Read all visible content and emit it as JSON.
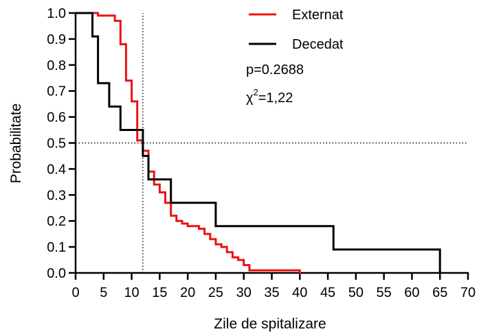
{
  "chart_data": {
    "type": "line",
    "subtype": "kaplan-meier-step",
    "title": "",
    "xlabel": "Zile de spitalizare",
    "ylabel": "Probabilitate",
    "xlim": [
      0,
      70
    ],
    "ylim": [
      0,
      1.0
    ],
    "x_ticks": [
      0,
      5,
      10,
      15,
      20,
      25,
      30,
      35,
      40,
      45,
      50,
      55,
      60,
      65,
      70
    ],
    "x_tick_labels": [
      "0",
      "5",
      "10",
      "15",
      "20",
      "25",
      "30",
      "35",
      "40",
      "45",
      "50",
      "55",
      "60",
      "65",
      "70"
    ],
    "y_ticks": [
      0.0,
      0.1,
      0.2,
      0.3,
      0.4,
      0.5,
      0.6,
      0.7,
      0.8,
      0.9,
      1.0
    ],
    "y_tick_labels": [
      "0.0",
      "0.1",
      "0.2",
      "0.3",
      "0.4",
      "0.5",
      "0.6",
      "0.7",
      "0.8",
      "0.9",
      "1.0"
    ],
    "grid": false,
    "legend_position": "top-right",
    "reference_lines": [
      {
        "orientation": "horizontal",
        "value": 0.5,
        "style": "dotted"
      },
      {
        "orientation": "vertical",
        "value": 12,
        "style": "dotted"
      }
    ],
    "annotations": {
      "p_value": "p=0.2688",
      "chi_prefix": "χ",
      "chi_exp": "2",
      "chi_value": "=1,22"
    },
    "series": [
      {
        "name": "Externat",
        "color": "#ee1111",
        "points": [
          [
            0,
            1.0
          ],
          [
            4,
            1.0
          ],
          [
            4,
            0.99
          ],
          [
            7,
            0.99
          ],
          [
            7,
            0.97
          ],
          [
            8,
            0.97
          ],
          [
            8,
            0.88
          ],
          [
            9,
            0.88
          ],
          [
            9,
            0.74
          ],
          [
            10,
            0.74
          ],
          [
            10,
            0.66
          ],
          [
            11,
            0.66
          ],
          [
            11,
            0.51
          ],
          [
            12,
            0.51
          ],
          [
            12,
            0.47
          ],
          [
            13,
            0.47
          ],
          [
            13,
            0.39
          ],
          [
            14,
            0.39
          ],
          [
            14,
            0.34
          ],
          [
            15,
            0.34
          ],
          [
            15,
            0.31
          ],
          [
            16,
            0.31
          ],
          [
            16,
            0.27
          ],
          [
            17,
            0.27
          ],
          [
            17,
            0.22
          ],
          [
            18,
            0.22
          ],
          [
            18,
            0.2
          ],
          [
            19,
            0.2
          ],
          [
            19,
            0.19
          ],
          [
            20,
            0.19
          ],
          [
            20,
            0.18
          ],
          [
            22,
            0.18
          ],
          [
            22,
            0.17
          ],
          [
            23,
            0.17
          ],
          [
            23,
            0.15
          ],
          [
            24,
            0.15
          ],
          [
            24,
            0.13
          ],
          [
            25,
            0.13
          ],
          [
            25,
            0.11
          ],
          [
            26,
            0.11
          ],
          [
            26,
            0.1
          ],
          [
            27,
            0.1
          ],
          [
            27,
            0.08
          ],
          [
            28,
            0.08
          ],
          [
            28,
            0.06
          ],
          [
            29,
            0.06
          ],
          [
            29,
            0.05
          ],
          [
            30,
            0.05
          ],
          [
            30,
            0.03
          ],
          [
            31,
            0.03
          ],
          [
            31,
            0.01
          ],
          [
            40,
            0.01
          ],
          [
            40,
            0.0
          ]
        ]
      },
      {
        "name": "Decedat",
        "color": "#000000",
        "points": [
          [
            0,
            1.0
          ],
          [
            3,
            1.0
          ],
          [
            3,
            0.91
          ],
          [
            4,
            0.91
          ],
          [
            4,
            0.73
          ],
          [
            6,
            0.73
          ],
          [
            6,
            0.64
          ],
          [
            8,
            0.64
          ],
          [
            8,
            0.55
          ],
          [
            12,
            0.55
          ],
          [
            12,
            0.45
          ],
          [
            13,
            0.45
          ],
          [
            13,
            0.36
          ],
          [
            17,
            0.36
          ],
          [
            17,
            0.27
          ],
          [
            25,
            0.27
          ],
          [
            25,
            0.18
          ],
          [
            46,
            0.18
          ],
          [
            46,
            0.09
          ],
          [
            65,
            0.09
          ],
          [
            65,
            0.0
          ]
        ]
      }
    ]
  }
}
